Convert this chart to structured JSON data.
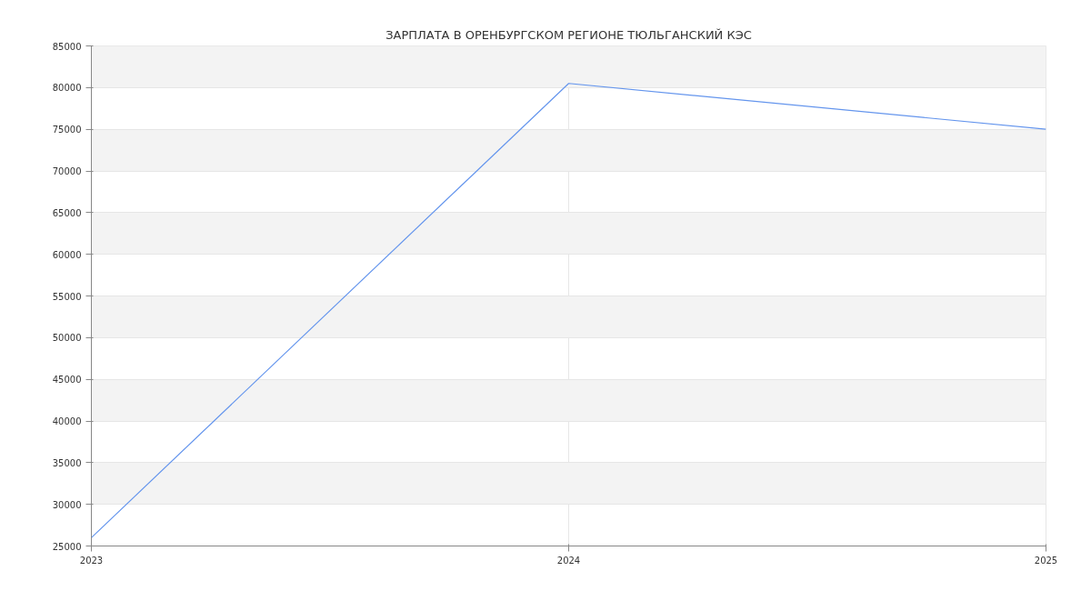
{
  "chart_data": {
    "type": "line",
    "title": "ЗАРПЛАТА В ОРЕНБУРГСКОМ РЕГИОНЕ ТЮЛЬГАНСКИЙ КЭС",
    "x": [
      2023,
      2024,
      2025
    ],
    "series": [
      {
        "color": "#6495ed",
        "values": [
          26000,
          80500,
          75000
        ]
      }
    ],
    "xlim": [
      2023,
      2025
    ],
    "xticks": [
      2023,
      2024,
      2025
    ],
    "ylim": [
      25000,
      85000
    ],
    "yticks": [
      25000,
      30000,
      35000,
      40000,
      45000,
      50000,
      55000,
      60000,
      65000,
      70000,
      75000,
      80000,
      85000
    ],
    "grid": true
  }
}
